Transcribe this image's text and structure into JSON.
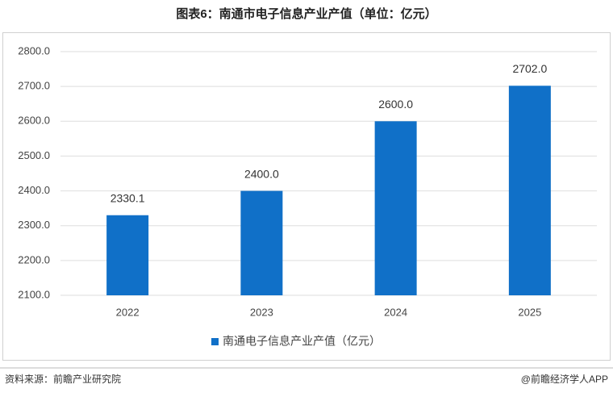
{
  "chart_data": {
    "type": "bar",
    "title": "图表6：南通市电子信息产业产值（单位：亿元）",
    "categories": [
      "2022",
      "2023",
      "2024",
      "2025"
    ],
    "series": [
      {
        "name": "南通电子信息产业产值（亿元）",
        "color": "#1070c8",
        "values": [
          2330.1,
          2400,
          2600,
          2702
        ],
        "value_labels": [
          "2330.1",
          "2400.0",
          "2600.0",
          "2702.0"
        ]
      }
    ],
    "ylim": [
      2100,
      2800
    ],
    "yticks": [
      {
        "value": 2100,
        "label": "2100.0"
      },
      {
        "value": 2200,
        "label": "2200.0"
      },
      {
        "value": 2300,
        "label": "2300.0"
      },
      {
        "value": 2400,
        "label": "2400.0"
      },
      {
        "value": 2500,
        "label": "2500.0"
      },
      {
        "value": 2600,
        "label": "2600.0"
      },
      {
        "value": 2700,
        "label": "2700.0"
      },
      {
        "value": 2800,
        "label": "2800.0"
      }
    ],
    "grid": true,
    "source": "资料来源：前瞻产业研究院",
    "credit": "@前瞻经济学人APP"
  }
}
